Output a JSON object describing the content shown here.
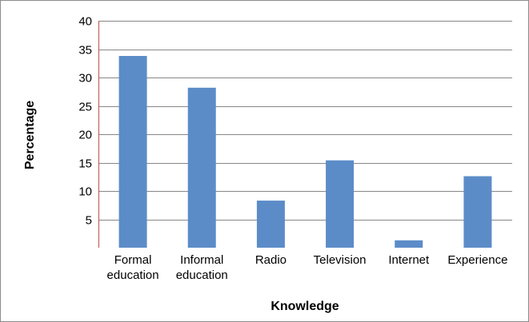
{
  "chart_data": {
    "type": "bar",
    "categories": [
      [
        "Formal",
        "education"
      ],
      [
        "Informal",
        "education"
      ],
      [
        "Radio"
      ],
      [
        "Television"
      ],
      [
        "Internet"
      ],
      [
        "Experience"
      ]
    ],
    "values": [
      33.8,
      28.2,
      8.3,
      15.4,
      1.3,
      12.6
    ],
    "xlabel": "Knowledge",
    "ylabel": "Percentage",
    "ylim": [
      0,
      40
    ],
    "yticks": [
      5,
      10,
      15,
      20,
      25,
      30,
      35,
      40
    ],
    "grid": true,
    "legend": "none",
    "colors": {
      "bar": "#5b8cc8",
      "grid": "#878787",
      "axis": "#c0504d"
    }
  }
}
